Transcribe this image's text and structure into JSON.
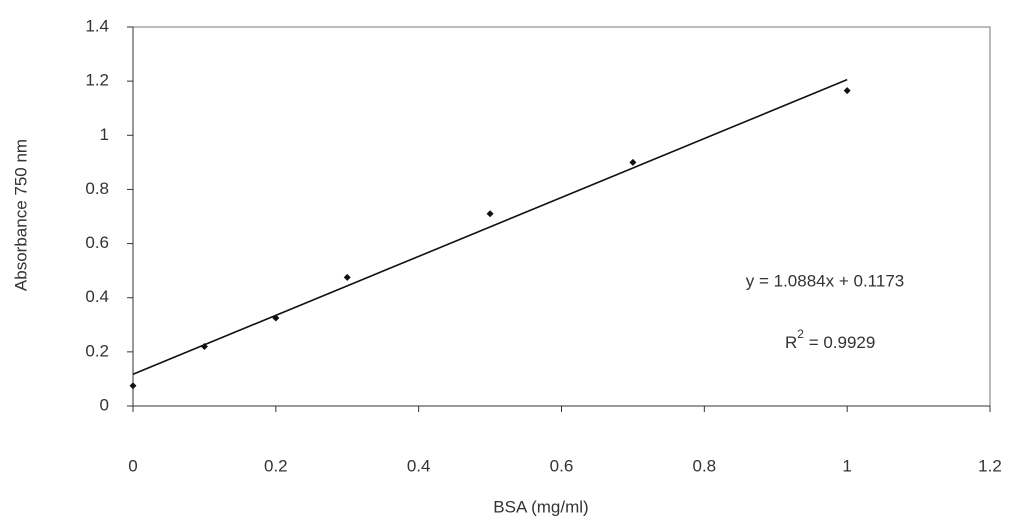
{
  "chart_data": {
    "type": "scatter",
    "x_label": "BSA (mg/ml)",
    "y_label": "Absorbance 750 nm",
    "x": [
      0,
      0.1,
      0.2,
      0.3,
      0.5,
      0.7,
      1
    ],
    "values": [
      0.075,
      0.22,
      0.325,
      0.475,
      0.71,
      0.9,
      1.165
    ],
    "color": "#111111",
    "xlim": [
      0,
      1.2
    ],
    "xticks": [
      0,
      0.2,
      0.4,
      0.6,
      0.8,
      1,
      1.2
    ],
    "ylim": [
      0,
      1.4
    ],
    "yticks": [
      0,
      0.2,
      0.4,
      0.6,
      0.8,
      1,
      1.2,
      1.4
    ],
    "grid": false,
    "trendline": {
      "slope": 1.0884,
      "intercept": 0.1173,
      "equation": "y = 1.0884x + 0.1173",
      "r2": [
        "R",
        "2",
        " = 0.9929"
      ]
    }
  }
}
